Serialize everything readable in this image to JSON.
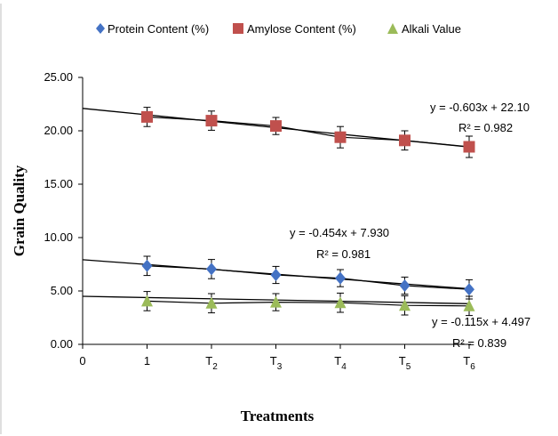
{
  "chart_data": {
    "type": "line",
    "title": "",
    "xlabel": "Treatments",
    "ylabel": "Grain Quality",
    "ylim": [
      0,
      25
    ],
    "yticks": [
      "0.00",
      "5.00",
      "10.00",
      "15.00",
      "20.00",
      "25.00"
    ],
    "x_tick_labels": [
      {
        "main": "0",
        "sub": ""
      },
      {
        "main": "1",
        "sub": ""
      },
      {
        "main": "T",
        "sub": "2"
      },
      {
        "main": "T",
        "sub": "3"
      },
      {
        "main": "T",
        "sub": "4"
      },
      {
        "main": "T",
        "sub": "5"
      },
      {
        "main": "T",
        "sub": "6"
      }
    ],
    "x": [
      1,
      2,
      3,
      4,
      5,
      6
    ],
    "legend_position": "top",
    "grid": false,
    "series": [
      {
        "name": "Protein Content (%)",
        "marker": "diamond",
        "color": "#4472C4",
        "values": [
          7.35,
          7.05,
          6.5,
          6.2,
          5.5,
          5.15
        ],
        "errors": [
          0.9,
          0.9,
          0.8,
          0.8,
          0.8,
          0.9
        ],
        "trendline": {
          "slope": -0.454,
          "intercept": 7.93
        },
        "equation": "y = -0.454x + 7.930",
        "r2": "R² = 0.981"
      },
      {
        "name": "Amylose Content (%)",
        "marker": "square",
        "color": "#C0504D",
        "values": [
          21.3,
          20.95,
          20.45,
          19.4,
          19.1,
          18.5
        ],
        "errors": [
          0.9,
          0.9,
          0.8,
          1.0,
          0.9,
          1.0
        ],
        "trendline": {
          "slope": -0.603,
          "intercept": 22.1
        },
        "equation": "y = -0.603x + 22.10",
        "r2": "R² = 0.982"
      },
      {
        "name": "Alkali Value",
        "marker": "triangle",
        "color": "#9BBB59",
        "values": [
          4.05,
          3.85,
          3.95,
          3.9,
          3.65,
          3.6
        ],
        "errors": [
          0.9,
          0.9,
          0.8,
          0.9,
          0.9,
          0.9
        ],
        "trendline": {
          "slope": -0.115,
          "intercept": 4.497
        },
        "equation": "y = -0.115x + 4.497",
        "r2": "R² = 0.839"
      }
    ]
  }
}
